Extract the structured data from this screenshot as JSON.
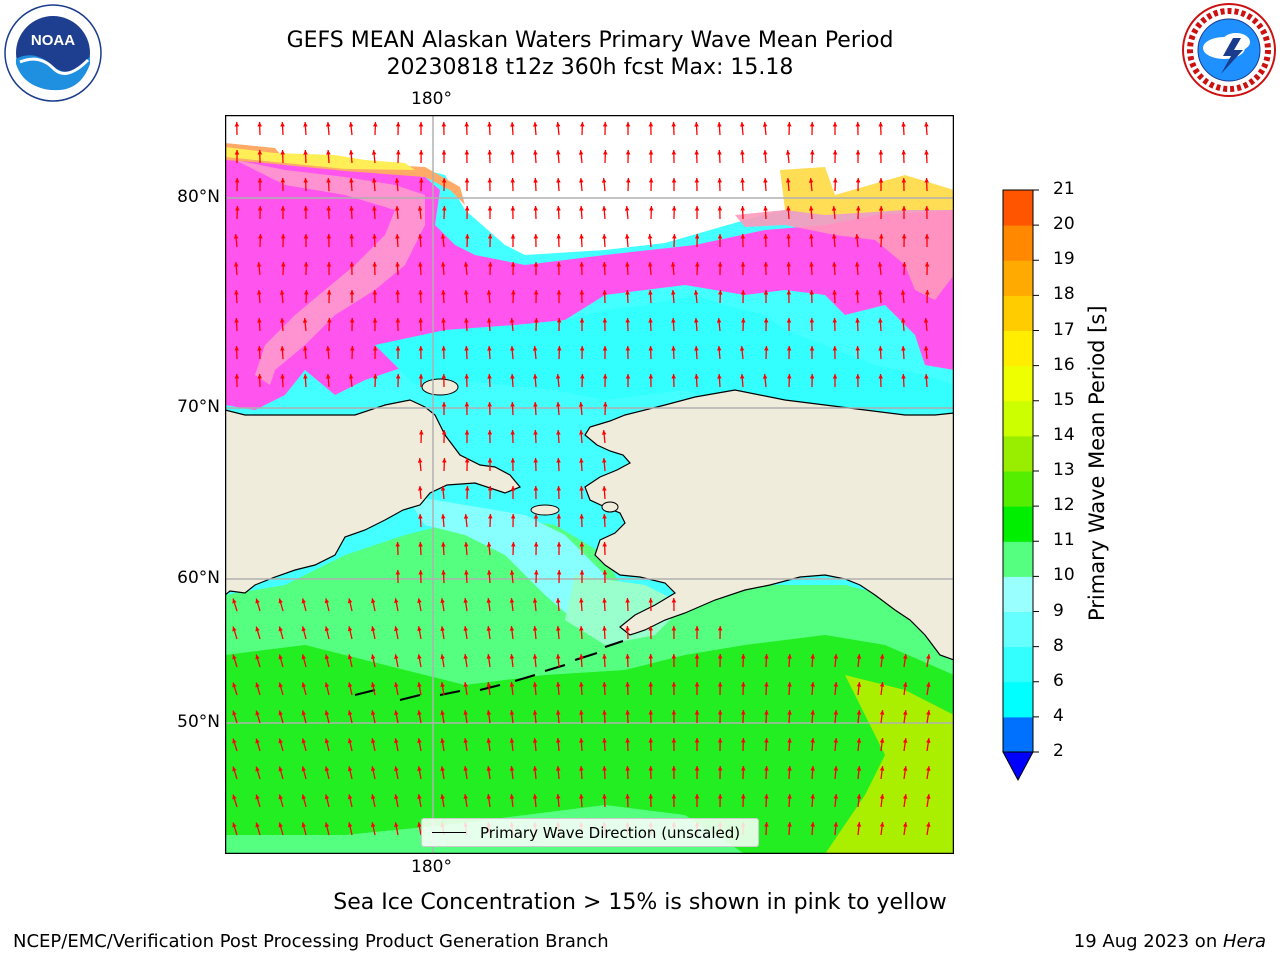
{
  "header": {
    "title_line1": "GEFS MEAN Alaskan Waters Primary Wave Mean Period",
    "title_line2": "20230818 t12z 360h fcst   Max: 15.18"
  },
  "logos": {
    "left": {
      "name": "noaa-logo",
      "text": "NOAA",
      "ring_text": "NATIONAL OCEANIC AND ATMOSPHERIC ADMINISTRATION · U.S. DEPARTMENT OF COMMERCE"
    },
    "right": {
      "name": "nws-logo",
      "ring_text": "NATIONAL WEATHER SERVICE"
    }
  },
  "map": {
    "lon_labels": {
      "top": "180°",
      "bottom": "180°"
    },
    "lat_labels": [
      "80°N",
      "70°N",
      "60°N",
      "50°N"
    ],
    "legend_label": "Primary Wave Direction (unscaled)",
    "colors": {
      "land": "#efecdc",
      "grid": "#b0b0b0",
      "arrow": "#ff0000",
      "coast": "#000000"
    }
  },
  "colorbar": {
    "label": "Primary Wave Mean Period [s]",
    "ticks": [
      "2",
      "4",
      "6",
      "8",
      "9",
      "10",
      "11",
      "12",
      "13",
      "14",
      "15",
      "16",
      "17",
      "18",
      "19",
      "20",
      "21"
    ],
    "colors": [
      "#0070ff",
      "#00ffff",
      "#33ffff",
      "#66ffff",
      "#99ffff",
      "#55ff7f",
      "#00ee00",
      "#55ee00",
      "#99ee00",
      "#ccff00",
      "#eeff00",
      "#ffee00",
      "#ffcc00",
      "#ffaa00",
      "#ff8800",
      "#ff5500",
      "#ff2200",
      "#ff0000"
    ],
    "under_color": "#0000ff"
  },
  "notes": {
    "ice": "Sea Ice Concentration > 15% is shown in pink to yellow"
  },
  "footer": {
    "left": "NCEP/EMC/Verification Post Processing Product Generation Branch",
    "right_date": "19 Aug 2023 on ",
    "right_machine": "Hera"
  }
}
